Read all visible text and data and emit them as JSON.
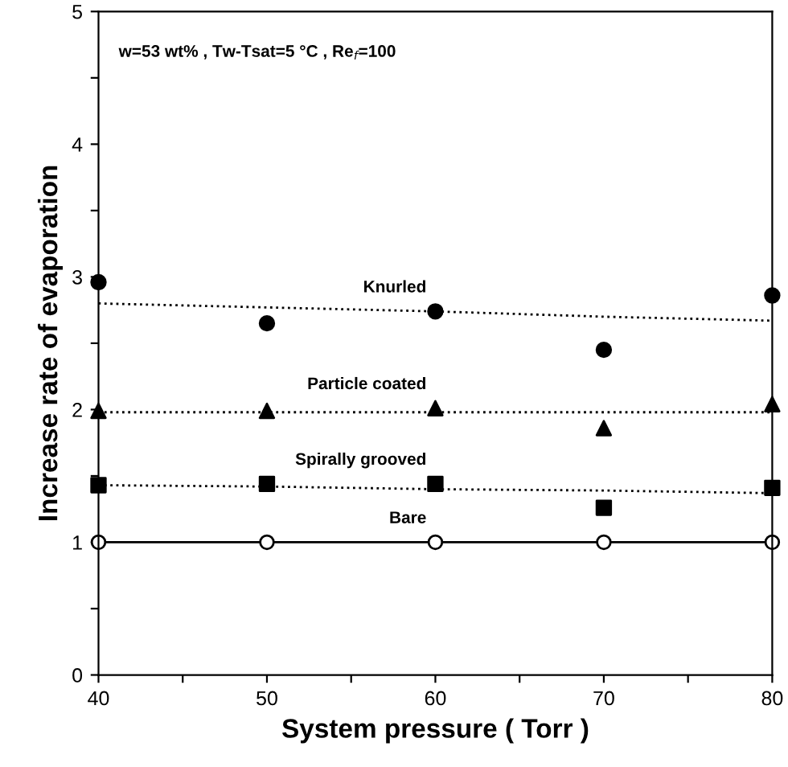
{
  "chart_data": {
    "type": "scatter",
    "xlabel": "System pressure ( Torr )",
    "ylabel": "Increase rate of evaporation",
    "annotations": [
      "w=53 wt% , Tw-Tsat=5 °C , Re$_{f}$=100"
    ],
    "x": [
      40,
      50,
      60,
      70,
      80
    ],
    "series": [
      {
        "name": "Knurled",
        "color": "#000000",
        "marker": "circle",
        "values": [
          2.96,
          2.65,
          2.74,
          2.45,
          2.86
        ]
      },
      {
        "type": "line",
        "color": "#000000",
        "line_style": "dotted",
        "marker": "none",
        "values": [
          2.8,
          2.77,
          2.74,
          2.7,
          2.67
        ]
      },
      {
        "name": "Particle coated",
        "color": "#000000",
        "marker": "triangle",
        "values": [
          1.99,
          1.99,
          2.01,
          1.86,
          2.04
        ]
      },
      {
        "type": "line",
        "color": "#000000",
        "line_style": "dotted",
        "marker": "none",
        "values": [
          1.98,
          1.98,
          1.98,
          1.98,
          1.98
        ]
      },
      {
        "name": "Spirally grooved",
        "color": "#000000",
        "marker": "square",
        "values": [
          1.43,
          1.44,
          1.44,
          1.26,
          1.41
        ]
      },
      {
        "type": "line",
        "color": "#000000",
        "line_style": "dotted",
        "marker": "none",
        "values": [
          1.43,
          1.42,
          1.4,
          1.39,
          1.37
        ]
      },
      {
        "name": "Bare",
        "type": "line",
        "color": "#000000",
        "marker": "circle",
        "line_style": "solid",
        "values": [
          1.0,
          1.0,
          1.0,
          1.0,
          1.0
        ]
      }
    ],
    "xlim": [
      40,
      80
    ],
    "ylim": [
      0,
      5
    ],
    "xticks": [
      40,
      {
        "value": 45,
        "label": null
      },
      50,
      {
        "value": 55,
        "label": null
      },
      60,
      {
        "value": 65,
        "label": null
      },
      70,
      {
        "value": 75,
        "label": null
      },
      80
    ],
    "yticks": [
      0,
      {
        "value": 0.5,
        "label": null
      },
      1,
      {
        "value": 1.5,
        "label": null
      },
      2,
      {
        "value": 2.5,
        "label": null
      },
      3,
      {
        "value": 3.5,
        "label": null
      },
      4,
      {
        "value": 4.5,
        "label": null
      },
      5
    ],
    "grid": false,
    "legend": false
  }
}
